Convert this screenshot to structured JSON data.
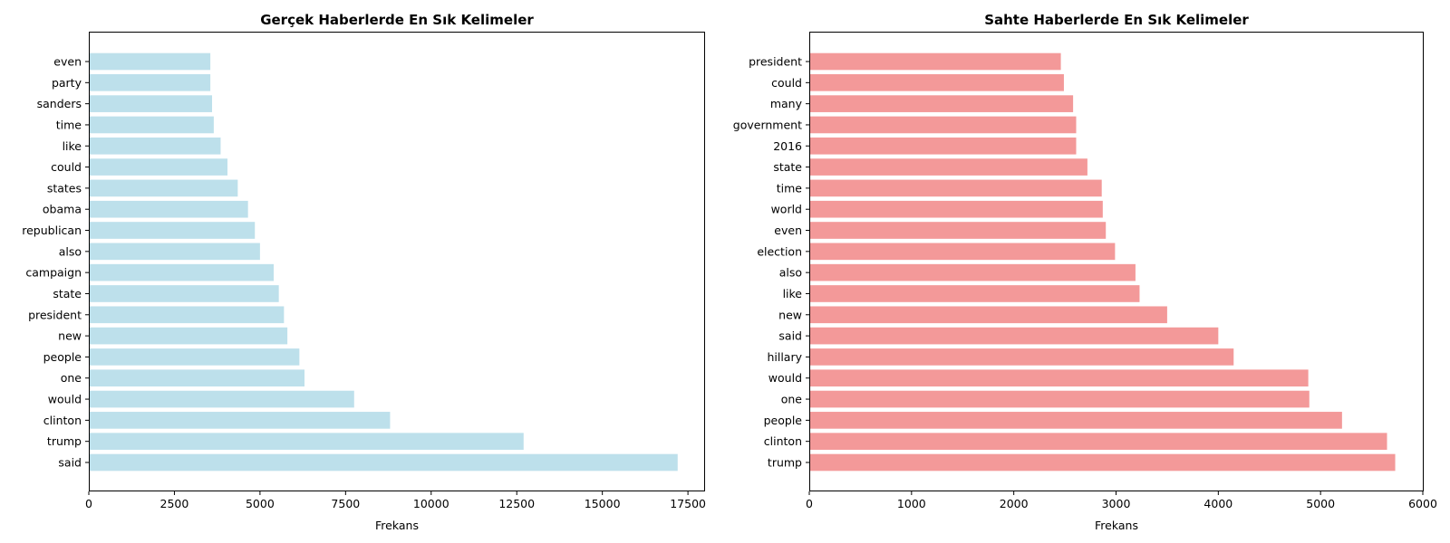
{
  "chart_data": [
    {
      "type": "bar",
      "orientation": "horizontal",
      "title": "Gerçek Haberlerde En Sık Kelimeler",
      "xlabel": "Frekans",
      "ylabel": "",
      "color": "#add8e6",
      "xlim": [
        0,
        18000
      ],
      "xticks": [
        0,
        2500,
        5000,
        7500,
        10000,
        12500,
        15000,
        17500
      ],
      "grid": false,
      "categories": [
        "said",
        "trump",
        "clinton",
        "would",
        "one",
        "people",
        "new",
        "president",
        "state",
        "campaign",
        "also",
        "republican",
        "obama",
        "states",
        "could",
        "like",
        "time",
        "sanders",
        "party",
        "even"
      ],
      "values": [
        17200,
        12700,
        8800,
        7750,
        6300,
        6150,
        5800,
        5700,
        5550,
        5400,
        5000,
        4850,
        4650,
        4350,
        4050,
        3850,
        3650,
        3600,
        3550,
        3550
      ]
    },
    {
      "type": "bar",
      "orientation": "horizontal",
      "title": "Sahte Haberlerde En Sık Kelimeler",
      "xlabel": "Frekans",
      "ylabel": "",
      "color": "#f08080",
      "xlim": [
        0,
        6000
      ],
      "xticks": [
        0,
        1000,
        2000,
        3000,
        4000,
        5000,
        6000
      ],
      "grid": false,
      "categories": [
        "trump",
        "clinton",
        "people",
        "one",
        "would",
        "hillary",
        "said",
        "new",
        "like",
        "also",
        "election",
        "even",
        "world",
        "time",
        "state",
        "2016",
        "government",
        "many",
        "could",
        "president"
      ],
      "values": [
        5730,
        5650,
        5210,
        4890,
        4880,
        4150,
        4000,
        3500,
        3230,
        3190,
        2990,
        2900,
        2870,
        2860,
        2720,
        2610,
        2610,
        2580,
        2490,
        2460
      ]
    }
  ]
}
